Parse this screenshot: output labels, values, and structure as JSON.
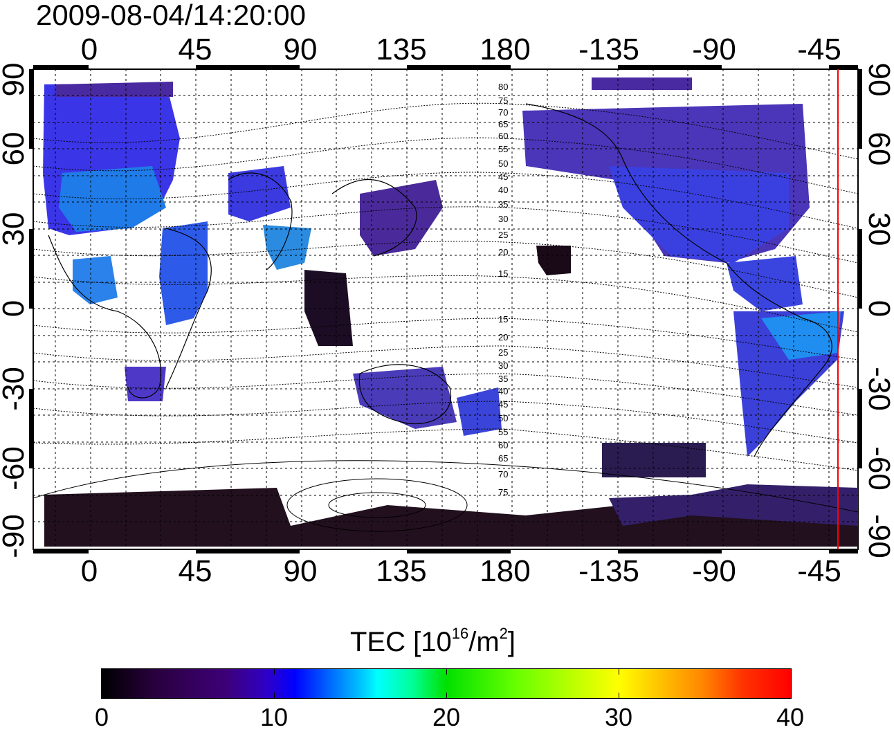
{
  "timestamp": "2009-08-04/14:20:00",
  "map": {
    "top_lon_labels": [
      "0",
      "45",
      "90",
      "135",
      "180",
      "-135",
      "-90",
      "-45"
    ],
    "bottom_lon_labels": [
      "0",
      "45",
      "90",
      "135",
      "180",
      "-135",
      "-90",
      "-45"
    ],
    "left_lat_labels": [
      "90",
      "60",
      "30",
      "0",
      "-30",
      "-60",
      "-90"
    ],
    "right_lat_labels": [
      "90",
      "60",
      "30",
      "0",
      "-30",
      "-60",
      "-90"
    ],
    "contour_labels_north": [
      "80",
      "75",
      "70",
      "65",
      "60",
      "55",
      "50",
      "45",
      "40",
      "35",
      "30",
      "25",
      "20",
      "15"
    ],
    "contour_labels_south": [
      "15",
      "20",
      "25",
      "30",
      "35",
      "40",
      "45",
      "50",
      "55",
      "60",
      "65",
      "70",
      "75"
    ],
    "terminator_color": "#ff0000"
  },
  "colorbar": {
    "title_main": "TEC  [10",
    "title_exp": "16",
    "title_unit": "/m",
    "title_exp2": "2",
    "title_end": "]",
    "tick_labels": [
      "0",
      "10",
      "20",
      "30",
      "40"
    ],
    "min": 0,
    "max": 40
  },
  "colors": {
    "low": "#2a0040",
    "mid_low": "#4b2c9a",
    "blue": "#3c3cf0",
    "cyan": "#00ccff",
    "dark": "#1a0a18"
  }
}
